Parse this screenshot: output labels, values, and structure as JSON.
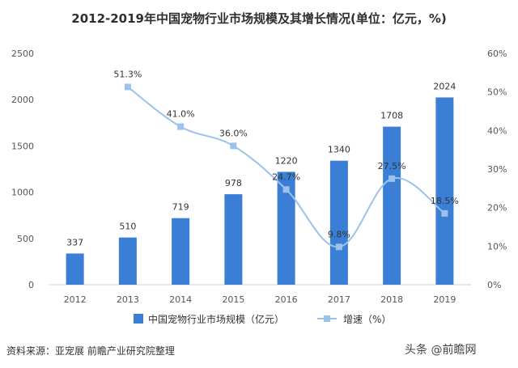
{
  "chart_data": {
    "type": "bar+line",
    "title": "2012-2019年中国宠物行业市场规模及其增长情况(单位：亿元，%)",
    "categories": [
      "2012",
      "2013",
      "2014",
      "2015",
      "2016",
      "2017",
      "2018",
      "2019"
    ],
    "series": [
      {
        "name": "中国宠物行业市场规模（亿元）",
        "type": "bar",
        "axis": "left",
        "values": [
          337,
          510,
          719,
          978,
          1220,
          1340,
          1708,
          2024
        ],
        "labels": [
          "337",
          "510",
          "719",
          "978",
          "1220",
          "1340",
          "1708",
          "2024"
        ],
        "color": "#3a7fd5"
      },
      {
        "name": "增速（%）",
        "type": "line",
        "axis": "right",
        "x": [
          "2013",
          "2014",
          "2015",
          "2016",
          "2017",
          "2018",
          "2019"
        ],
        "values": [
          51.3,
          41.0,
          36.0,
          24.7,
          9.8,
          27.5,
          18.5
        ],
        "labels": [
          "51.3%",
          "41.0%",
          "36.0%",
          "24.7%",
          "9.8%",
          "27.5%",
          "18.5%"
        ],
        "color": "#9cc2ea"
      }
    ],
    "y_left": {
      "ylim": [
        0,
        2500
      ],
      "ticks": [
        "0",
        "500",
        "1000",
        "1500",
        "2000",
        "2500"
      ]
    },
    "y_right": {
      "ylim": [
        0,
        60
      ],
      "ticks": [
        "0%",
        "10%",
        "20%",
        "30%",
        "40%",
        "50%",
        "60%"
      ]
    },
    "grid": false,
    "legend": "bottom"
  },
  "footer": {
    "source": "资料来源：亚宠展 前瞻产业研究院整理",
    "watermark": "头条 @前瞻网"
  }
}
